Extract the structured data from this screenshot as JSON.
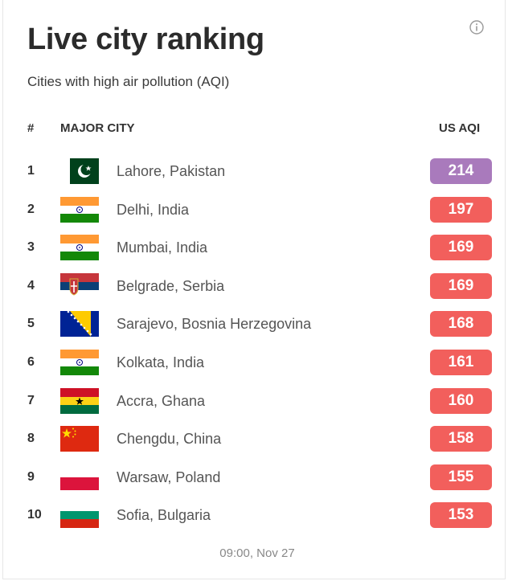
{
  "header": {
    "title": "Live city ranking",
    "subtitle": "Cities with high air pollution (AQI)",
    "info_icon": "info-circle-icon"
  },
  "columns": {
    "rank": "#",
    "city": "MAJOR CITY",
    "aqi": "US AQI"
  },
  "colors": {
    "very_unhealthy": "#a97abc",
    "unhealthy": "#f25f5c"
  },
  "rows": [
    {
      "rank": "1",
      "city": "Lahore, Pakistan",
      "aqi": "214",
      "flag": "pakistan-flag-icon",
      "level": "very_unhealthy"
    },
    {
      "rank": "2",
      "city": "Delhi, India",
      "aqi": "197",
      "flag": "india-flag-icon",
      "level": "unhealthy"
    },
    {
      "rank": "3",
      "city": "Mumbai, India",
      "aqi": "169",
      "flag": "india-flag-icon",
      "level": "unhealthy"
    },
    {
      "rank": "4",
      "city": "Belgrade, Serbia",
      "aqi": "169",
      "flag": "serbia-flag-icon",
      "level": "unhealthy"
    },
    {
      "rank": "5",
      "city": "Sarajevo, Bosnia Herzegovina",
      "aqi": "168",
      "flag": "bosnia-flag-icon",
      "level": "unhealthy"
    },
    {
      "rank": "6",
      "city": "Kolkata, India",
      "aqi": "161",
      "flag": "india-flag-icon",
      "level": "unhealthy"
    },
    {
      "rank": "7",
      "city": "Accra, Ghana",
      "aqi": "160",
      "flag": "ghana-flag-icon",
      "level": "unhealthy"
    },
    {
      "rank": "8",
      "city": "Chengdu, China",
      "aqi": "158",
      "flag": "china-flag-icon",
      "level": "unhealthy"
    },
    {
      "rank": "9",
      "city": "Warsaw, Poland",
      "aqi": "155",
      "flag": "poland-flag-icon",
      "level": "unhealthy"
    },
    {
      "rank": "10",
      "city": "Sofia, Bulgaria",
      "aqi": "153",
      "flag": "bulgaria-flag-icon",
      "level": "unhealthy"
    }
  ],
  "footer": {
    "timestamp": "09:00, Nov 27"
  }
}
